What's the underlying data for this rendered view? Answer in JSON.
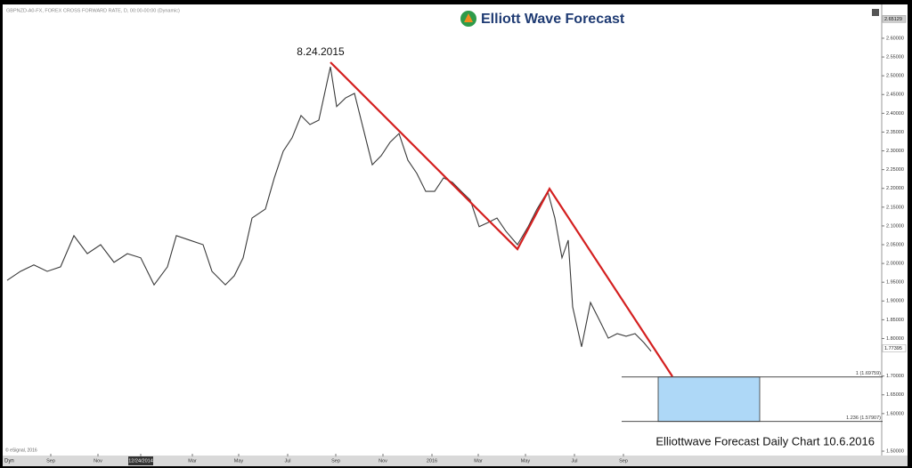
{
  "chart_data": {
    "type": "line",
    "header": "GBPNZD-A0-FX, FOREX CROSS FORWARD RATE, D, 00:00-00:00 (Dynamic)",
    "logo": "Elliott Wave Forecast",
    "annotation": "8.24.2015",
    "footer": "Elliottwave Forecast Daily Chart 10.6.2016",
    "copyright": "© eSignal, 2016",
    "corner_label": "Dyn",
    "color": "#3a3a3a",
    "x": [
      5,
      20,
      35,
      50,
      65,
      80,
      95,
      110,
      125,
      140,
      155,
      170,
      185,
      195,
      210,
      225,
      235,
      250,
      260,
      270,
      280,
      295,
      305,
      315,
      325,
      335,
      345,
      355,
      368,
      375,
      385,
      395,
      405,
      415,
      425,
      435,
      445,
      455,
      465,
      475,
      485,
      495,
      505,
      515,
      525,
      535,
      545,
      555,
      565,
      578,
      590,
      600,
      612,
      620,
      628,
      635,
      640,
      650,
      660,
      670,
      680,
      690,
      700,
      710,
      720,
      728
    ],
    "values": [
      1.955,
      1.979,
      1.996,
      1.979,
      1.991,
      2.074,
      2.026,
      2.05,
      2.003,
      2.026,
      2.015,
      1.943,
      1.991,
      2.074,
      2.062,
      2.05,
      1.979,
      1.943,
      1.967,
      2.015,
      2.121,
      2.145,
      2.228,
      2.299,
      2.335,
      2.394,
      2.37,
      2.382,
      2.524,
      2.418,
      2.441,
      2.453,
      2.358,
      2.263,
      2.287,
      2.323,
      2.346,
      2.275,
      2.24,
      2.192,
      2.192,
      2.228,
      2.216,
      2.192,
      2.169,
      2.098,
      2.109,
      2.121,
      2.086,
      2.05,
      2.098,
      2.145,
      2.192,
      2.121,
      2.015,
      2.062,
      1.884,
      1.778,
      1.896,
      1.849,
      1.801,
      1.813,
      1.806,
      1.813,
      1.789,
      1.766
    ],
    "trend_line": {
      "x": [
        368,
        578,
        614,
        752
      ],
      "values": [
        2.536,
        2.038,
        2.199,
        1.699
      ],
      "color": "#d42020"
    },
    "target_box": {
      "x": [
        736,
        850
      ],
      "values": [
        1.69759,
        1.57907
      ],
      "color": "#aed8f7"
    },
    "fib_levels": [
      {
        "value": 1.69759,
        "label": "1 (1.69759)"
      },
      {
        "value": 1.57907,
        "label": "1.236 (1.57907)"
      }
    ],
    "fib_x": [
      695,
      988
    ],
    "price_markers": [
      {
        "value": 2.65129,
        "label": "2.65129"
      },
      {
        "value": 1.77395,
        "label": "1.77395"
      }
    ],
    "xlim": [
      0,
      985
    ],
    "ylim": [
      1.493,
      2.69
    ],
    "xticks": [
      {
        "value": 54,
        "label": "Sep"
      },
      {
        "value": 107,
        "label": "Nov"
      },
      {
        "value": 155,
        "label": "12/24/2014"
      },
      {
        "value": 213,
        "label": "Mar"
      },
      {
        "value": 265,
        "label": "May"
      },
      {
        "value": 320,
        "label": "Jul"
      },
      {
        "value": 374,
        "label": "Sep"
      },
      {
        "value": 427,
        "label": "Nov"
      },
      {
        "value": 482,
        "label": "2016"
      },
      {
        "value": 534,
        "label": "Mar"
      },
      {
        "value": 587,
        "label": "May"
      },
      {
        "value": 642,
        "label": "Jul"
      },
      {
        "value": 697,
        "label": "Sep"
      }
    ],
    "yticks": [
      {
        "value": 2.6,
        "label": "2.60000"
      },
      {
        "value": 2.55,
        "label": "2.55000"
      },
      {
        "value": 2.5,
        "label": "2.50000"
      },
      {
        "value": 2.45,
        "label": "2.45000"
      },
      {
        "value": 2.4,
        "label": "2.40000"
      },
      {
        "value": 2.35,
        "label": "2.35000"
      },
      {
        "value": 2.3,
        "label": "2.30000"
      },
      {
        "value": 2.25,
        "label": "2.25000"
      },
      {
        "value": 2.2,
        "label": "2.20000"
      },
      {
        "value": 2.15,
        "label": "2.15000"
      },
      {
        "value": 2.1,
        "label": "2.10000"
      },
      {
        "value": 2.05,
        "label": "2.05000"
      },
      {
        "value": 2.0,
        "label": "2.00000"
      },
      {
        "value": 1.95,
        "label": "1.95000"
      },
      {
        "value": 1.9,
        "label": "1.90000"
      },
      {
        "value": 1.85,
        "label": "1.85000"
      },
      {
        "value": 1.8,
        "label": "1.80000"
      },
      {
        "value": 1.7,
        "label": "1.70000"
      },
      {
        "value": 1.65,
        "label": "1.65000"
      },
      {
        "value": 1.6,
        "label": "1.60000"
      },
      {
        "value": 1.5,
        "label": "1.50000"
      }
    ]
  }
}
